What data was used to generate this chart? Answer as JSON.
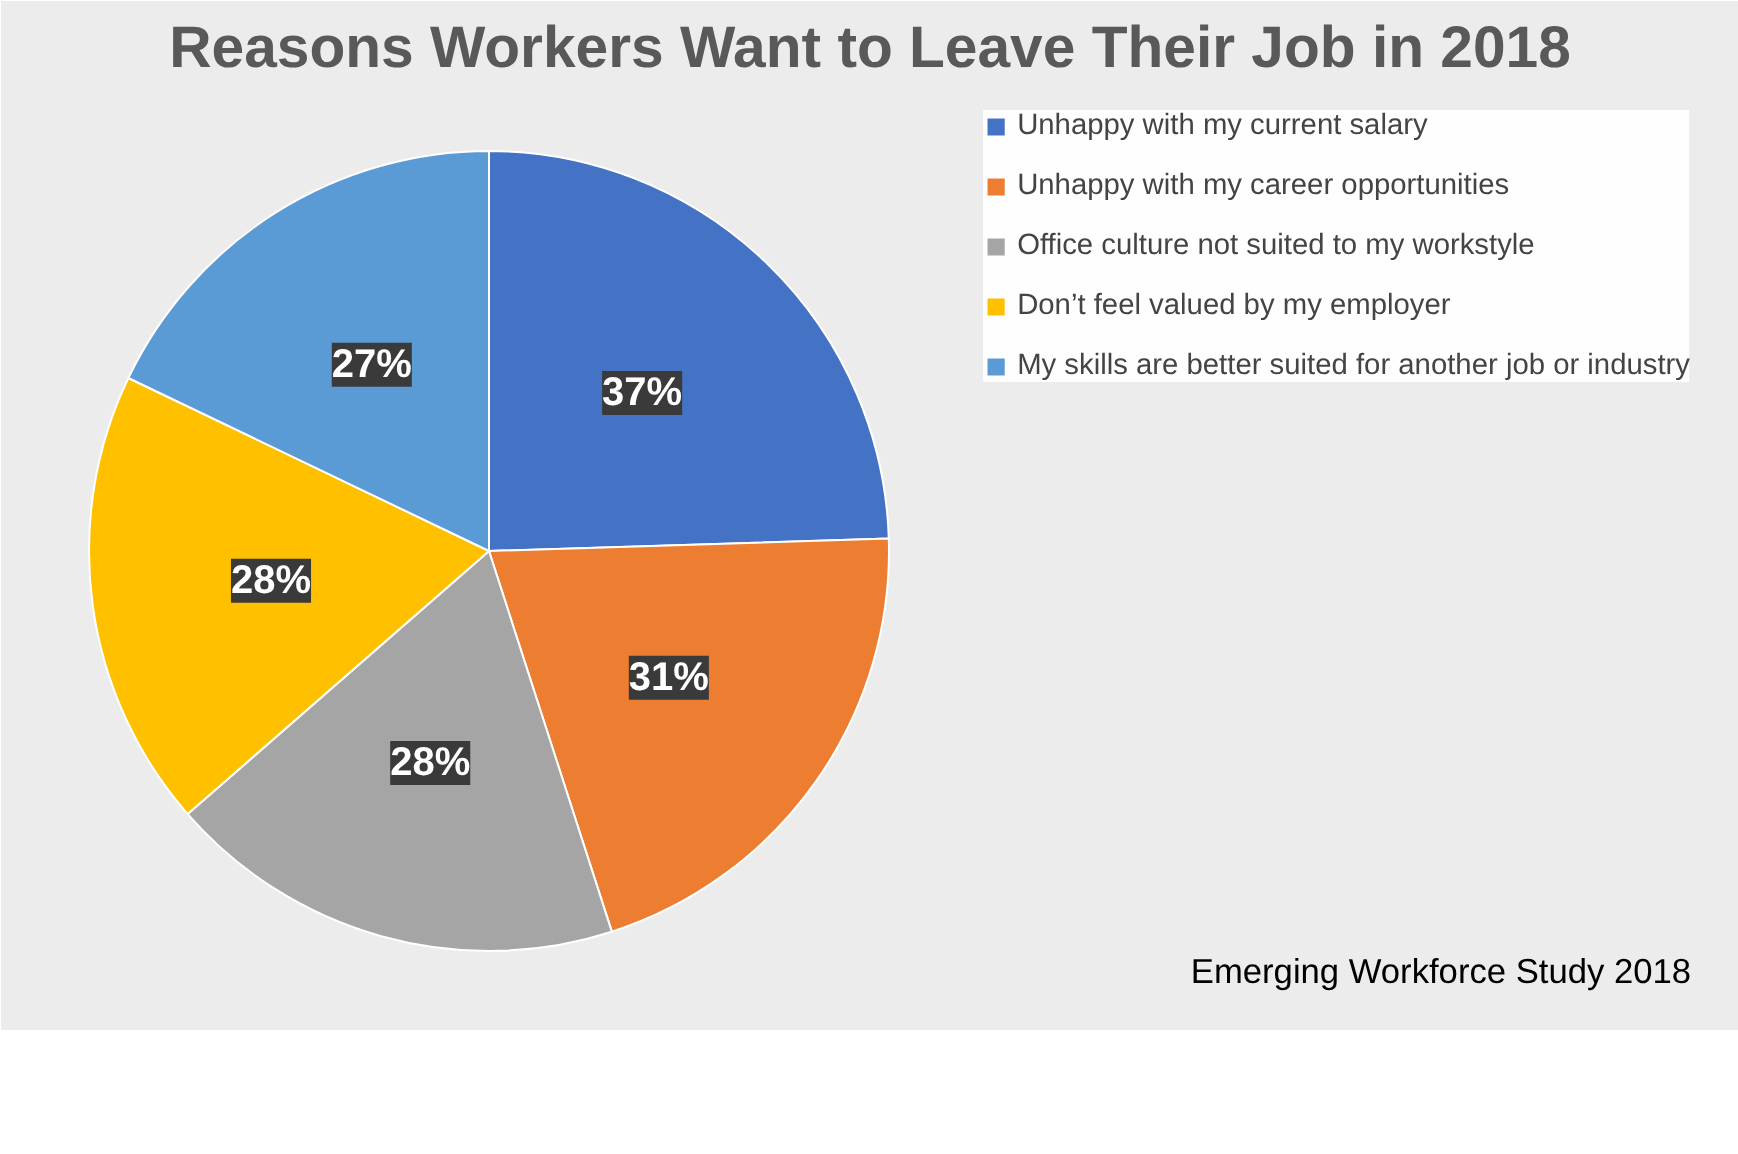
{
  "chart_data": {
    "type": "pie",
    "title": "Reasons Workers Want to Leave Their Job in 2018",
    "categories": [
      "Unhappy with my current salary",
      "Unhappy with my career opportunities",
      "Office culture not suited to my workstyle",
      "Don’t feel valued by my employer",
      "My skills are better suited for another job or industry"
    ],
    "values": [
      37,
      31,
      28,
      28,
      27
    ],
    "colors": [
      "#4472c4",
      "#ed7d31",
      "#a5a5a5",
      "#ffc000",
      "#5b9bd5"
    ],
    "value_labels": [
      "37%",
      "31%",
      "28%",
      "28%",
      "27%"
    ],
    "legend": "right",
    "annotations": [
      "Emerging Workforce Study 2018"
    ]
  }
}
